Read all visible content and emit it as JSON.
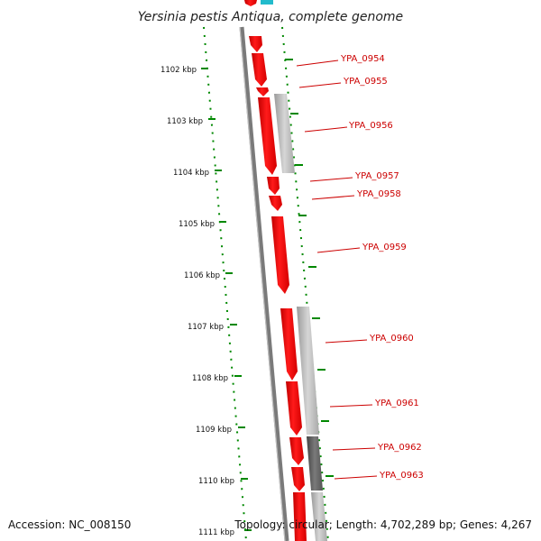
{
  "title": "Yersinia pestis Antiqua, complete genome",
  "footer": {
    "accession": "Accession: NC_008150",
    "info": "Topology: circular; Length: 4,702,289 bp; Genes: 4,267"
  },
  "ruler": {
    "label_unit": "kbp",
    "ticks": [
      "1102 kbp",
      "1103 kbp",
      "1104 kbp",
      "1105 kbp",
      "1106 kbp",
      "1107 kbp",
      "1108 kbp",
      "1109 kbp",
      "1110 kbp",
      "1111 kbp"
    ]
  },
  "colors": {
    "gene_forward": "#ff0000",
    "ruler_dots": "#008800",
    "backbone": "#777777",
    "label_line": "#cc0000",
    "teal_feature": "#22bbcc"
  },
  "genes": [
    {
      "label": "YPA_0954"
    },
    {
      "label": "YPA_0955"
    },
    {
      "label": "YPA_0956"
    },
    {
      "label": "YPA_0957"
    },
    {
      "label": "YPA_0958"
    },
    {
      "label": "YPA_0959"
    },
    {
      "label": "YPA_0960"
    },
    {
      "label": "YPA_0961"
    },
    {
      "label": "YPA_0962"
    },
    {
      "label": "YPA_0963"
    }
  ]
}
